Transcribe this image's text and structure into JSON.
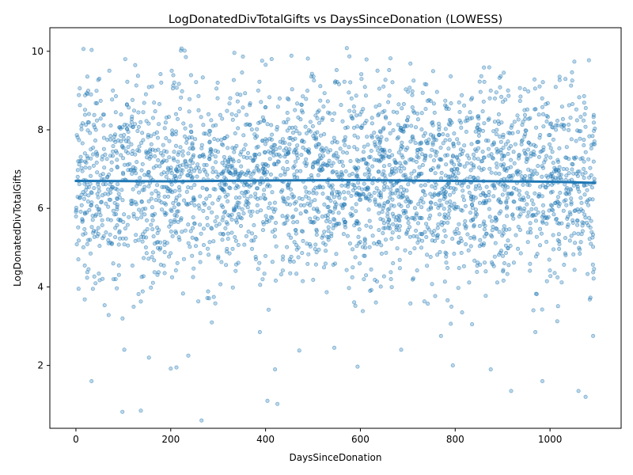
{
  "chart_data": {
    "type": "scatter",
    "title": "LogDonatedDivTotalGifts vs DaysSinceDonation (LOWESS)",
    "xlabel": "DaysSinceDonation",
    "ylabel": "LogDonatedDivTotalGifts",
    "xlim": [
      -55,
      1150
    ],
    "ylim": [
      0.4,
      10.6
    ],
    "x_ticks": [
      0,
      200,
      400,
      600,
      800,
      1000
    ],
    "y_ticks": [
      2,
      4,
      6,
      8,
      10
    ],
    "grid": false,
    "colors": {
      "points": "#1f77b4",
      "trend": "#1f77b4"
    },
    "series": [
      {
        "kind": "points",
        "x_range": [
          0,
          1095
        ],
        "count": 3000,
        "center": 6.7,
        "note_values": "dense cloud of points, most between 4 and 9.5, sparse tail down to about 0.6",
        "outliers": [
          {
            "x": 98,
            "y": 0.82
          },
          {
            "x": 137,
            "y": 0.85
          },
          {
            "x": 265,
            "y": 0.6
          },
          {
            "x": 404,
            "y": 1.1
          },
          {
            "x": 425,
            "y": 1.02
          },
          {
            "x": 1075,
            "y": 1.2
          },
          {
            "x": 1060,
            "y": 1.35
          },
          {
            "x": 918,
            "y": 1.35
          },
          {
            "x": 33,
            "y": 1.6
          },
          {
            "x": 984,
            "y": 1.6
          },
          {
            "x": 420,
            "y": 1.9
          },
          {
            "x": 200,
            "y": 1.92
          },
          {
            "x": 212,
            "y": 1.95
          },
          {
            "x": 594,
            "y": 1.97
          },
          {
            "x": 795,
            "y": 2.0
          },
          {
            "x": 875,
            "y": 1.9
          },
          {
            "x": 154,
            "y": 2.2
          },
          {
            "x": 237,
            "y": 2.25
          },
          {
            "x": 471,
            "y": 2.38
          },
          {
            "x": 102,
            "y": 2.4
          },
          {
            "x": 686,
            "y": 2.4
          },
          {
            "x": 545,
            "y": 2.45
          },
          {
            "x": 1091,
            "y": 2.75
          },
          {
            "x": 770,
            "y": 2.75
          },
          {
            "x": 388,
            "y": 2.85
          },
          {
            "x": 969,
            "y": 2.85
          }
        ]
      },
      {
        "kind": "lowess",
        "name": "",
        "x": [
          0,
          200,
          400,
          600,
          800,
          1000,
          1095
        ],
        "y": [
          6.7,
          6.69,
          6.71,
          6.72,
          6.7,
          6.68,
          6.65
        ]
      }
    ]
  }
}
